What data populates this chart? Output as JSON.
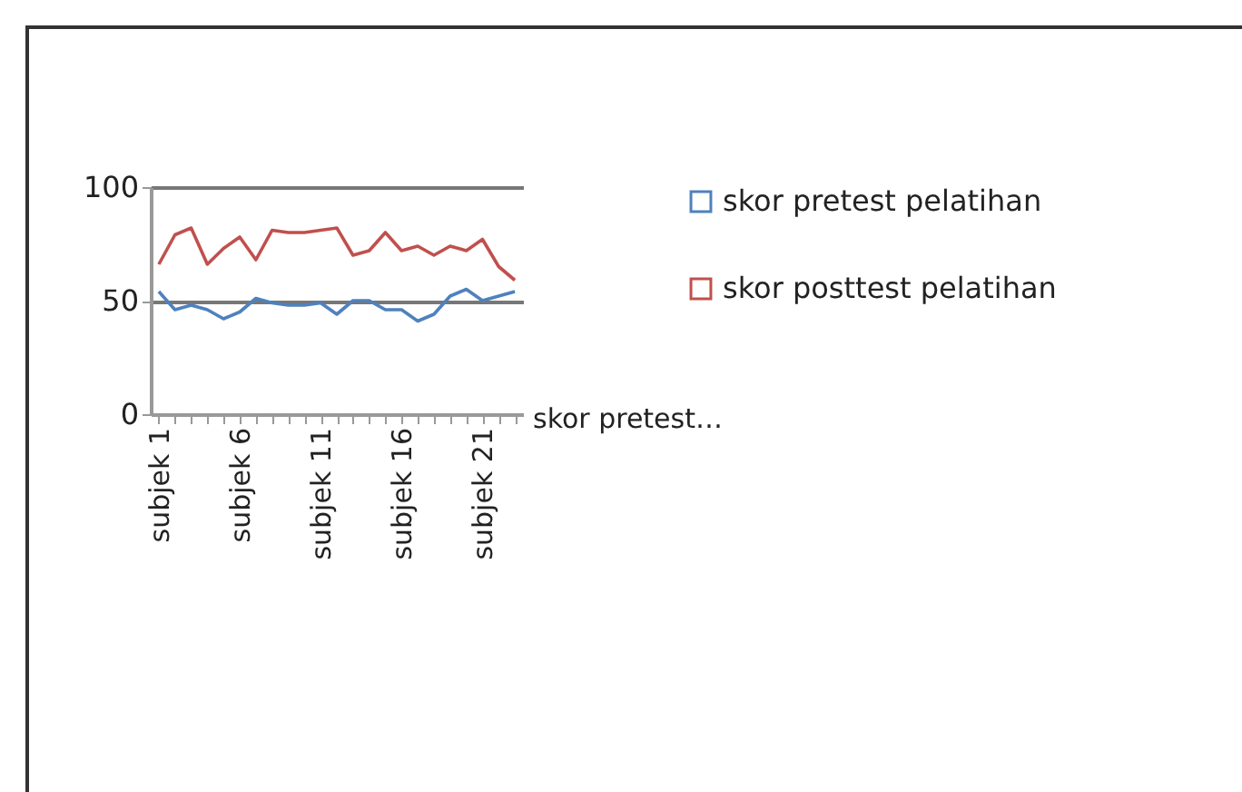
{
  "chart_data": {
    "type": "line",
    "categories": [
      "subjek 1",
      null,
      null,
      null,
      null,
      "subjek 6",
      null,
      null,
      null,
      null,
      "subjek 11",
      null,
      null,
      null,
      null,
      "subjek 16",
      null,
      null,
      null,
      null,
      "subjek 21",
      null,
      null
    ],
    "series": [
      {
        "name": "skor pretest pelatihan",
        "color": "#4f81bd",
        "values": [
          54,
          46,
          48,
          46,
          42,
          45,
          51,
          49,
          48,
          48,
          49,
          44,
          50,
          50,
          46,
          46,
          41,
          44,
          52,
          55,
          50,
          52,
          54
        ]
      },
      {
        "name": "skor posttest pelatihan",
        "color": "#c0504d",
        "values": [
          66,
          79,
          82,
          66,
          73,
          78,
          68,
          81,
          80,
          80,
          81,
          82,
          70,
          72,
          80,
          72,
          74,
          70,
          74,
          72,
          77,
          65,
          59
        ]
      }
    ],
    "xlabel": "skor pretest…",
    "ylim": [
      0,
      100
    ],
    "yticks": [
      0,
      50,
      100
    ],
    "grid": "y",
    "legend": "right",
    "marker": "none",
    "line_style": "solid"
  }
}
